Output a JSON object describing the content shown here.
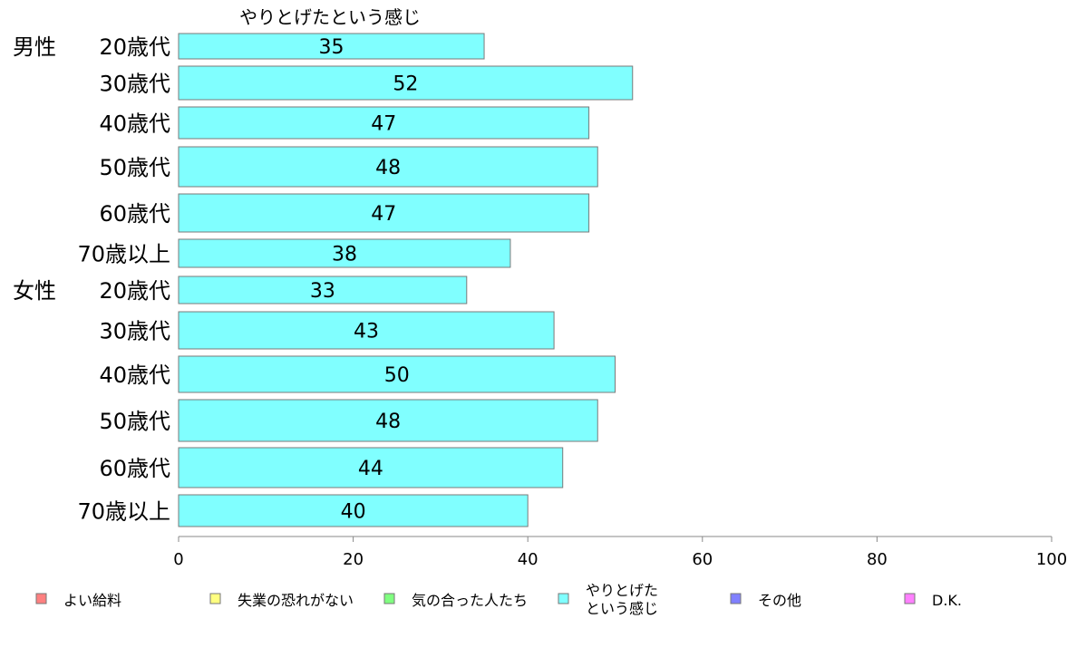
{
  "chart_data": {
    "type": "bar",
    "orientation": "horizontal",
    "title": "やりとげたという感じ",
    "group_labels": [
      "男性",
      "女性"
    ],
    "categories": [
      "20歳代",
      "30歳代",
      "40歳代",
      "50歳代",
      "60歳代",
      "70歳以上",
      "20歳代",
      "30歳代",
      "40歳代",
      "50歳代",
      "60歳代",
      "70歳以上"
    ],
    "series": [
      {
        "name": "やりとげたという感じ",
        "values": [
          35,
          52,
          47,
          48,
          47,
          38,
          33,
          43,
          50,
          48,
          44,
          40
        ],
        "color": "#80ffff"
      }
    ],
    "xlim": [
      0,
      100
    ],
    "xticks": [
      0,
      20,
      40,
      60,
      80,
      100
    ],
    "grid": false,
    "legend_position": "bottom",
    "legend": [
      {
        "label": "よい給料",
        "color": "#ff8080"
      },
      {
        "label": "失業の恐れがない",
        "color": "#ffff80"
      },
      {
        "label": "気の合った人たち",
        "color": "#80ff80"
      },
      {
        "label": "やりとげた\nという感じ",
        "color": "#80ffff"
      },
      {
        "label": "その他",
        "color": "#8080ff"
      },
      {
        "label": "D.K.",
        "color": "#ff80ff"
      }
    ]
  }
}
